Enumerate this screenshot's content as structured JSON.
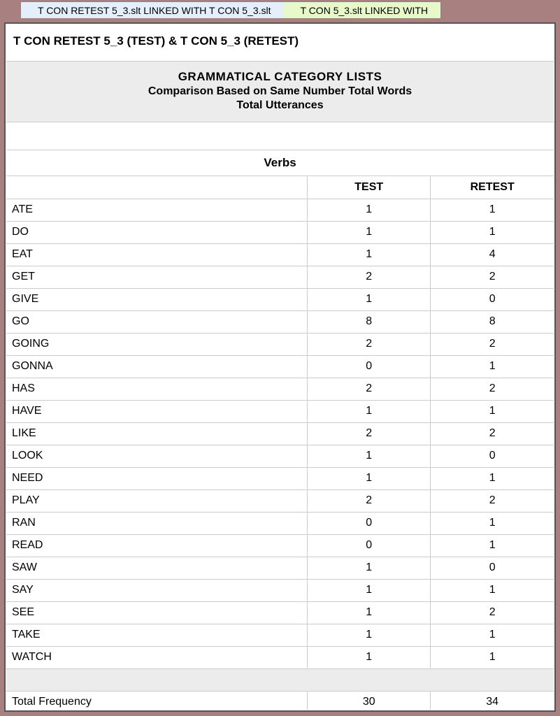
{
  "tabs": [
    {
      "label": "T CON RETEST 5_3.slt LINKED WITH T CON 5_3.slt",
      "active": true
    },
    {
      "label": "T CON 5_3.slt LINKED WITH",
      "active": false
    }
  ],
  "page_title": "T CON RETEST 5_3 (TEST) & T CON 5_3 (RETEST)",
  "header": {
    "line1": "GRAMMATICAL CATEGORY LISTS",
    "line2": "Comparison Based on Same Number Total Words",
    "line3": "Total Utterances"
  },
  "section_title": "Verbs",
  "columns": {
    "blank": "",
    "c1": "TEST",
    "c2": "RETEST"
  },
  "rows": [
    {
      "word": "ATE",
      "test": 1,
      "retest": 1
    },
    {
      "word": "DO",
      "test": 1,
      "retest": 1
    },
    {
      "word": "EAT",
      "test": 1,
      "retest": 4
    },
    {
      "word": "GET",
      "test": 2,
      "retest": 2
    },
    {
      "word": "GIVE",
      "test": 1,
      "retest": 0
    },
    {
      "word": "GO",
      "test": 8,
      "retest": 8
    },
    {
      "word": "GOING",
      "test": 2,
      "retest": 2
    },
    {
      "word": "GONNA",
      "test": 0,
      "retest": 1
    },
    {
      "word": "HAS",
      "test": 2,
      "retest": 2
    },
    {
      "word": "HAVE",
      "test": 1,
      "retest": 1
    },
    {
      "word": "LIKE",
      "test": 2,
      "retest": 2
    },
    {
      "word": "LOOK",
      "test": 1,
      "retest": 0
    },
    {
      "word": "NEED",
      "test": 1,
      "retest": 1
    },
    {
      "word": "PLAY",
      "test": 2,
      "retest": 2
    },
    {
      "word": "RAN",
      "test": 0,
      "retest": 1
    },
    {
      "word": "READ",
      "test": 0,
      "retest": 1
    },
    {
      "word": "SAW",
      "test": 1,
      "retest": 0
    },
    {
      "word": "SAY",
      "test": 1,
      "retest": 1
    },
    {
      "word": "SEE",
      "test": 1,
      "retest": 2
    },
    {
      "word": "TAKE",
      "test": 1,
      "retest": 1
    },
    {
      "word": "WATCH",
      "test": 1,
      "retest": 1
    }
  ],
  "total": {
    "label": "Total Frequency",
    "test": 30,
    "retest": 34
  },
  "colors": {
    "frame_bg": "#a88080",
    "active_tab_bg": "#e3effb",
    "inactive_tab_bg": "#e7f8c9",
    "header_block_bg": "#ececec",
    "border": "#cccccc",
    "text": "#000000"
  }
}
